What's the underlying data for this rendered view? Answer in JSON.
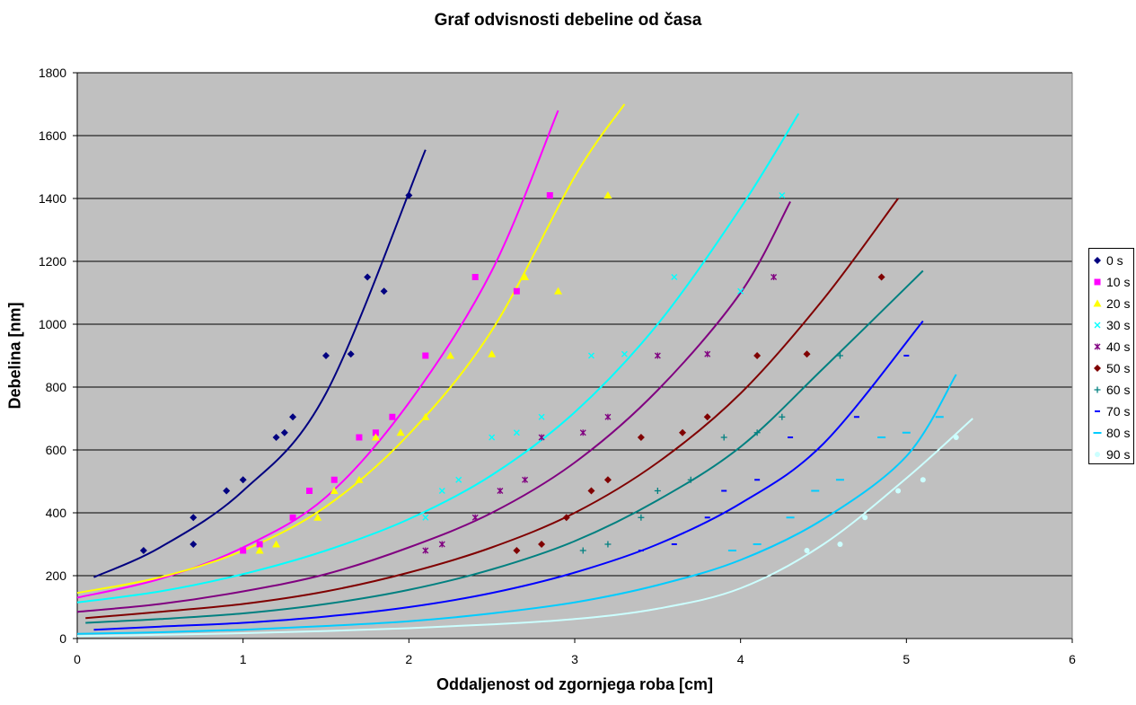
{
  "chart_data": {
    "type": "scatter",
    "title": "Graf odvisnosti debeline od časa",
    "xlabel": "Oddaljenost od zgornjega roba [cm]",
    "ylabel": "Debelina [nm]",
    "xlim": [
      0,
      6
    ],
    "ylim": [
      0,
      1800
    ],
    "xticks": [
      "0",
      "1",
      "2",
      "3",
      "4",
      "5",
      "6"
    ],
    "yticks": [
      "0",
      "200",
      "400",
      "600",
      "800",
      "1000",
      "1200",
      "1400",
      "1600",
      "1800"
    ],
    "grid": "horizontal",
    "plot_background": "#C0C0C0",
    "legend_position": "right",
    "trendlines": "exponential",
    "series": [
      {
        "name": "0 s",
        "color": "#000080",
        "marker": "diamond",
        "points": [
          [
            0.4,
            280
          ],
          [
            0.7,
            300
          ],
          [
            0.7,
            385
          ],
          [
            0.9,
            470
          ],
          [
            1.0,
            505
          ],
          [
            1.2,
            640
          ],
          [
            1.25,
            655
          ],
          [
            1.3,
            705
          ],
          [
            1.5,
            900
          ],
          [
            1.65,
            905
          ],
          [
            1.75,
            1150
          ],
          [
            1.85,
            1105
          ],
          [
            2.0,
            1410
          ]
        ],
        "trend": [
          [
            0.1,
            195
          ],
          [
            0.5,
            290
          ],
          [
            1.0,
            470
          ],
          [
            1.5,
            780
          ],
          [
            2.1,
            1555
          ]
        ]
      },
      {
        "name": "10 s",
        "color": "#FF00FF",
        "marker": "square",
        "points": [
          [
            1.0,
            280
          ],
          [
            1.1,
            300
          ],
          [
            1.3,
            385
          ],
          [
            1.4,
            470
          ],
          [
            1.55,
            505
          ],
          [
            1.7,
            640
          ],
          [
            1.8,
            655
          ],
          [
            1.9,
            705
          ],
          [
            2.1,
            900
          ],
          [
            2.4,
            1150
          ],
          [
            2.65,
            1105
          ],
          [
            2.85,
            1410
          ]
        ],
        "trend": [
          [
            0,
            130
          ],
          [
            0.5,
            190
          ],
          [
            1.0,
            290
          ],
          [
            1.5,
            450
          ],
          [
            2.0,
            750
          ],
          [
            2.5,
            1170
          ],
          [
            2.9,
            1680
          ]
        ]
      },
      {
        "name": "20 s",
        "color": "#FFFF00",
        "marker": "triangle",
        "points": [
          [
            1.1,
            280
          ],
          [
            1.2,
            300
          ],
          [
            1.45,
            385
          ],
          [
            1.55,
            470
          ],
          [
            1.7,
            505
          ],
          [
            1.8,
            640
          ],
          [
            1.95,
            655
          ],
          [
            2.1,
            705
          ],
          [
            2.25,
            900
          ],
          [
            2.5,
            905
          ],
          [
            2.7,
            1150
          ],
          [
            2.9,
            1105
          ],
          [
            3.2,
            1410
          ]
        ],
        "trend": [
          [
            0,
            145
          ],
          [
            0.5,
            195
          ],
          [
            1.0,
            280
          ],
          [
            1.5,
            420
          ],
          [
            2.0,
            650
          ],
          [
            2.5,
            980
          ],
          [
            3.0,
            1470
          ],
          [
            3.3,
            1700
          ]
        ]
      },
      {
        "name": "30 s",
        "color": "#00FFFF",
        "marker": "x",
        "points": [
          [
            2.1,
            385
          ],
          [
            2.2,
            470
          ],
          [
            2.3,
            505
          ],
          [
            2.5,
            640
          ],
          [
            2.65,
            655
          ],
          [
            2.8,
            705
          ],
          [
            3.1,
            900
          ],
          [
            3.3,
            905
          ],
          [
            3.6,
            1150
          ],
          [
            4.0,
            1105
          ],
          [
            4.25,
            1410
          ]
        ],
        "trend": [
          [
            0,
            115
          ],
          [
            0.5,
            150
          ],
          [
            1.0,
            205
          ],
          [
            1.5,
            280
          ],
          [
            2.0,
            380
          ],
          [
            2.5,
            520
          ],
          [
            3.0,
            720
          ],
          [
            3.5,
            1000
          ],
          [
            4.0,
            1370
          ],
          [
            4.35,
            1670
          ]
        ]
      },
      {
        "name": "40 s",
        "color": "#800080",
        "marker": "star",
        "points": [
          [
            2.1,
            280
          ],
          [
            2.2,
            300
          ],
          [
            2.4,
            385
          ],
          [
            2.55,
            470
          ],
          [
            2.7,
            505
          ],
          [
            2.8,
            640
          ],
          [
            3.05,
            655
          ],
          [
            3.2,
            705
          ],
          [
            3.5,
            900
          ],
          [
            3.8,
            905
          ],
          [
            4.2,
            1150
          ]
        ],
        "trend": [
          [
            0,
            85
          ],
          [
            0.5,
            110
          ],
          [
            1.0,
            150
          ],
          [
            1.5,
            205
          ],
          [
            2.0,
            290
          ],
          [
            2.5,
            400
          ],
          [
            3.0,
            560
          ],
          [
            3.5,
            790
          ],
          [
            4.0,
            1100
          ],
          [
            4.3,
            1390
          ]
        ]
      },
      {
        "name": "50 s",
        "color": "#800000",
        "marker": "circle",
        "points": [
          [
            2.65,
            280
          ],
          [
            2.8,
            300
          ],
          [
            2.95,
            385
          ],
          [
            3.1,
            470
          ],
          [
            3.2,
            505
          ],
          [
            3.4,
            640
          ],
          [
            3.65,
            655
          ],
          [
            3.8,
            705
          ],
          [
            4.1,
            900
          ],
          [
            4.4,
            905
          ],
          [
            4.85,
            1150
          ]
        ],
        "trend": [
          [
            0.05,
            65
          ],
          [
            0.5,
            85
          ],
          [
            1.0,
            110
          ],
          [
            1.5,
            150
          ],
          [
            2.0,
            210
          ],
          [
            2.5,
            290
          ],
          [
            3.0,
            400
          ],
          [
            3.5,
            560
          ],
          [
            4.0,
            780
          ],
          [
            4.5,
            1080
          ],
          [
            4.95,
            1400
          ]
        ]
      },
      {
        "name": "60 s",
        "color": "#008080",
        "marker": "plus",
        "points": [
          [
            3.05,
            280
          ],
          [
            3.2,
            300
          ],
          [
            3.4,
            385
          ],
          [
            3.5,
            470
          ],
          [
            3.7,
            505
          ],
          [
            3.9,
            640
          ],
          [
            4.1,
            655
          ],
          [
            4.25,
            705
          ],
          [
            4.6,
            900
          ]
        ],
        "trend": [
          [
            0.05,
            50
          ],
          [
            0.5,
            62
          ],
          [
            1.0,
            80
          ],
          [
            1.5,
            110
          ],
          [
            2.0,
            155
          ],
          [
            2.5,
            220
          ],
          [
            3.0,
            310
          ],
          [
            3.5,
            440
          ],
          [
            4.0,
            610
          ],
          [
            4.5,
            860
          ],
          [
            5.1,
            1170
          ]
        ]
      },
      {
        "name": "70 s",
        "color": "#0000FF",
        "marker": "dash",
        "points": [
          [
            3.4,
            280
          ],
          [
            3.6,
            300
          ],
          [
            3.8,
            385
          ],
          [
            3.9,
            470
          ],
          [
            4.1,
            505
          ],
          [
            4.3,
            640
          ],
          [
            4.7,
            705
          ],
          [
            5.0,
            900
          ]
        ],
        "trend": [
          [
            0.1,
            28
          ],
          [
            0.5,
            38
          ],
          [
            1.0,
            50
          ],
          [
            1.5,
            70
          ],
          [
            2.0,
            100
          ],
          [
            2.5,
            145
          ],
          [
            3.0,
            210
          ],
          [
            3.5,
            300
          ],
          [
            4.0,
            430
          ],
          [
            4.5,
            620
          ],
          [
            5.1,
            1010
          ]
        ]
      },
      {
        "name": "80 s",
        "color": "#00CCFF",
        "marker": "longdash",
        "points": [
          [
            3.95,
            280
          ],
          [
            4.1,
            300
          ],
          [
            4.3,
            385
          ],
          [
            4.45,
            470
          ],
          [
            4.6,
            505
          ],
          [
            4.85,
            640
          ],
          [
            5.0,
            655
          ],
          [
            5.2,
            705
          ]
        ],
        "trend": [
          [
            0,
            15
          ],
          [
            0.5,
            20
          ],
          [
            1.0,
            28
          ],
          [
            1.5,
            40
          ],
          [
            2.0,
            55
          ],
          [
            2.5,
            80
          ],
          [
            3.0,
            115
          ],
          [
            3.5,
            170
          ],
          [
            4.0,
            250
          ],
          [
            4.5,
            380
          ],
          [
            5.0,
            580
          ],
          [
            5.3,
            840
          ]
        ]
      },
      {
        "name": "90 s",
        "color": "#CCFFFF",
        "marker": "circle-small",
        "points": [
          [
            4.4,
            280
          ],
          [
            4.6,
            300
          ],
          [
            4.75,
            385
          ],
          [
            4.95,
            470
          ],
          [
            5.1,
            505
          ],
          [
            5.3,
            640
          ]
        ],
        "trend": [
          [
            0,
            8
          ],
          [
            0.5,
            12
          ],
          [
            1.0,
            17
          ],
          [
            1.5,
            24
          ],
          [
            2.0,
            33
          ],
          [
            2.5,
            45
          ],
          [
            3.0,
            62
          ],
          [
            3.5,
            95
          ],
          [
            4.0,
            160
          ],
          [
            4.5,
            300
          ],
          [
            5.0,
            510
          ],
          [
            5.4,
            700
          ]
        ]
      }
    ]
  }
}
